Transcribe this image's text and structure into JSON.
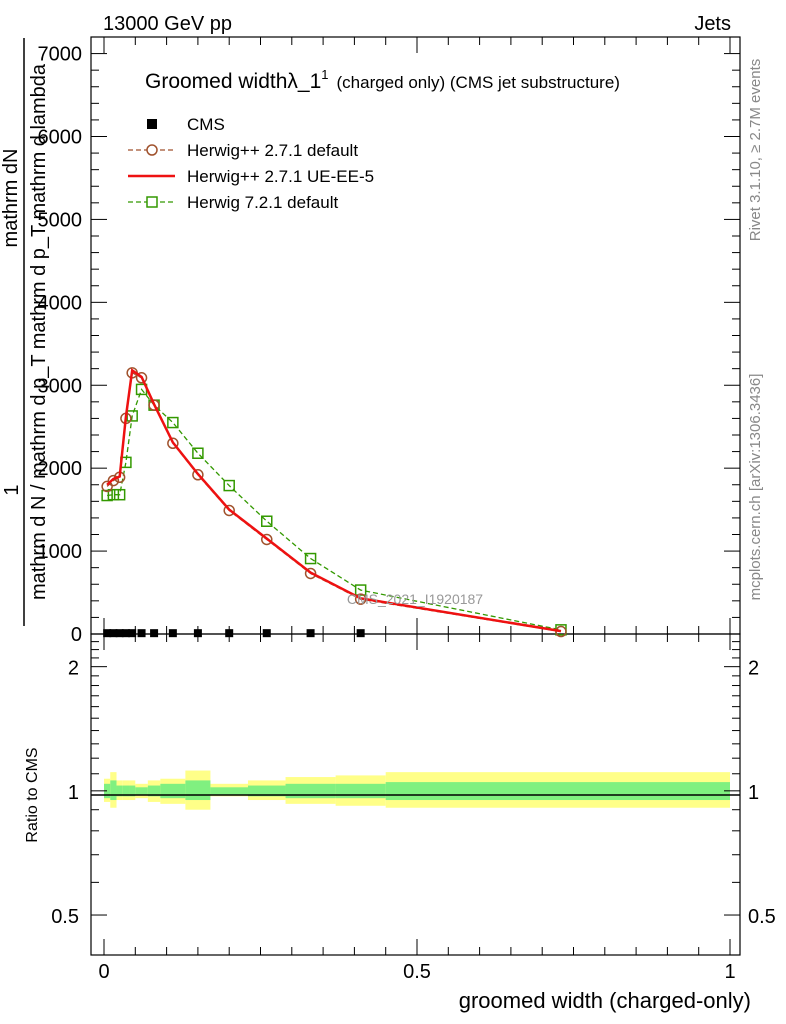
{
  "header": {
    "energy_label": "13000 GeV pp",
    "category_label": "Jets"
  },
  "side_text": {
    "rivet": "Rivet 3.1.10, ≥ 2.7M events",
    "mcplots": "mcplots.cern.ch [arXiv:1306.3436]"
  },
  "chart_data": [
    {
      "type": "line",
      "title": "Groomed widthλ_1",
      "title_superscript": "1",
      "subtitle": "(charged only) (CMS jet substructure)",
      "watermark": "CMS_2021_I1920187",
      "ylabel_top": "1",
      "ylabel_numerator": "mathrm dN",
      "ylabel_denominator_1": "mathrm d N / mathrm d p_T mathrm d p_T mathrm d lambda",
      "xlim": [
        0,
        1
      ],
      "ylim": [
        0,
        7200
      ],
      "yticks": [
        {
          "value": 0,
          "label": "0"
        },
        {
          "value": 1000,
          "label": "1000"
        },
        {
          "value": 2000,
          "label": "2000"
        },
        {
          "value": 3000,
          "label": "3000"
        },
        {
          "value": 4000,
          "label": "4000"
        },
        {
          "value": 5000,
          "label": "5000"
        },
        {
          "value": 6000,
          "label": "6000"
        },
        {
          "value": 7000,
          "label": "7000"
        }
      ],
      "legend_position": "top-left",
      "series": [
        {
          "name": "CMS",
          "color": "#000000",
          "marker": "square-filled",
          "x": [
            0.005,
            0.015,
            0.025,
            0.035,
            0.045,
            0.06,
            0.08,
            0.11,
            0.15,
            0.2,
            0.26,
            0.33,
            0.41
          ],
          "y": [
            10,
            10,
            10,
            10,
            10,
            10,
            10,
            10,
            10,
            10,
            10,
            10,
            10
          ]
        },
        {
          "name": "Herwig++ 2.7.1 default",
          "color": "#a0522d",
          "marker": "circle-open",
          "line": "dashed",
          "x": [
            0.005,
            0.015,
            0.025,
            0.035,
            0.045,
            0.06,
            0.08,
            0.11,
            0.15,
            0.2,
            0.26,
            0.33,
            0.41,
            0.73
          ],
          "y": [
            1780,
            1850,
            1890,
            2600,
            3150,
            3090,
            2760,
            2300,
            1920,
            1490,
            1140,
            730,
            420,
            30
          ]
        },
        {
          "name": "Herwig++ 2.7.1 UE-EE-5",
          "color": "#ee1111",
          "marker": "none",
          "line": "solid",
          "x": [
            0.005,
            0.015,
            0.025,
            0.035,
            0.045,
            0.06,
            0.08,
            0.11,
            0.15,
            0.2,
            0.26,
            0.33,
            0.41,
            0.73
          ],
          "y": [
            1800,
            1870,
            1900,
            2620,
            3180,
            3100,
            2770,
            2310,
            1930,
            1500,
            1150,
            740,
            430,
            35
          ]
        },
        {
          "name": "Herwig 7.2.1 default",
          "color": "#339900",
          "marker": "square-open",
          "line": "dashed",
          "x": [
            0.005,
            0.015,
            0.025,
            0.035,
            0.045,
            0.06,
            0.08,
            0.11,
            0.15,
            0.2,
            0.26,
            0.33,
            0.41,
            0.73
          ],
          "y": [
            1670,
            1680,
            1680,
            2070,
            2630,
            2950,
            2760,
            2550,
            2180,
            1790,
            1360,
            910,
            530,
            50
          ]
        }
      ]
    },
    {
      "type": "area",
      "ylabel": "Ratio to CMS",
      "xlabel": "groomed width (charged-only)",
      "xlim": [
        0,
        1
      ],
      "ylim": [
        0.4,
        2.4
      ],
      "yscale": "log",
      "xticks": [
        {
          "value": 0,
          "label": "0"
        },
        {
          "value": 0.5,
          "label": "0.5"
        },
        {
          "value": 1,
          "label": "1"
        }
      ],
      "yticks": [
        {
          "value": 0.5,
          "label": "0.5"
        },
        {
          "value": 1,
          "label": "1"
        },
        {
          "value": 2,
          "label": "2"
        }
      ],
      "bands": {
        "bin_edges": [
          0,
          0.01,
          0.02,
          0.03,
          0.04,
          0.05,
          0.07,
          0.09,
          0.13,
          0.17,
          0.23,
          0.29,
          0.37,
          0.45,
          1.0
        ],
        "stat": {
          "color": "#80f080",
          "low": [
            0.96,
            0.95,
            0.97,
            0.97,
            0.97,
            0.98,
            0.97,
            0.96,
            0.95,
            0.98,
            0.97,
            0.96,
            0.96,
            0.95
          ],
          "high": [
            1.04,
            1.06,
            1.03,
            1.03,
            1.03,
            1.02,
            1.03,
            1.04,
            1.06,
            1.02,
            1.03,
            1.04,
            1.04,
            1.05
          ]
        },
        "total": {
          "color": "#ffff88",
          "low": [
            0.94,
            0.91,
            0.95,
            0.95,
            0.95,
            0.96,
            0.94,
            0.93,
            0.9,
            0.97,
            0.95,
            0.93,
            0.92,
            0.91
          ],
          "high": [
            1.07,
            1.11,
            1.06,
            1.06,
            1.06,
            1.04,
            1.06,
            1.07,
            1.12,
            1.04,
            1.06,
            1.08,
            1.09,
            1.11
          ]
        }
      },
      "reference_line": 1
    }
  ]
}
